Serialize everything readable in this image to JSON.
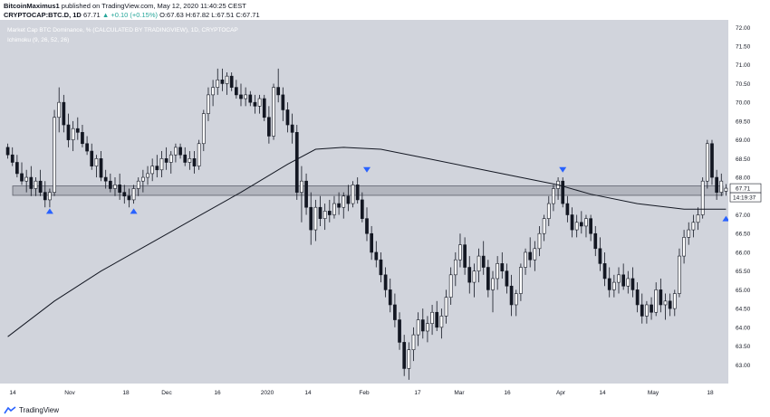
{
  "header": {
    "author": "BitcoinMaximus1",
    "published": "published on TradingView.com, May 12, 2020 11:40:25 CEST",
    "symbol": "CRYPTOCAP:BTC.D, 1D",
    "last": "67.71",
    "change": "▲ +0.10 (+0.15%)",
    "ohlc": "O:67.63 H:67.82 L:67.51 C:67.71"
  },
  "overlay": {
    "title": "Market Cap BTC Dominance, % (CALCULATED BY TRADINGVIEW), 1D, CRYPTOCAP",
    "indicator": "Ichimoku (9, 26, 52, 26)"
  },
  "price_label": "67.71",
  "countdown_label": "14:19:37",
  "footer": {
    "brand": "TradingView"
  },
  "colors": {
    "background": "#d1d4dc",
    "candle_outline": "#131722",
    "candle_fill": "#ffffff",
    "moving_average": "#131722",
    "zone_fill": "#b2b5be",
    "marker": "#2962ff"
  },
  "chart_data": {
    "type": "candlestick",
    "y_axis_ticks": [
      "72.00",
      "71.50",
      "71.00",
      "70.50",
      "70.00",
      "69.50",
      "69.00",
      "68.50",
      "68.00",
      "67.50",
      "67.00",
      "66.50",
      "66.00",
      "65.50",
      "65.00",
      "64.50",
      "64.00",
      "63.50",
      "63.00"
    ],
    "y_range": [
      62.5,
      72.2
    ],
    "x_axis_labels": [
      "14",
      "Nov",
      "18",
      "Dec",
      "16",
      "2020",
      "14",
      "Feb",
      "17",
      "Mar",
      "16",
      "Apr",
      "14",
      "May",
      "18"
    ],
    "support_zone": [
      67.52,
      67.77
    ],
    "last_price": 67.71,
    "candles": [
      {
        "t": 0,
        "o": 68.8,
        "h": 68.9,
        "l": 68.5,
        "c": 68.6
      },
      {
        "t": 1,
        "o": 68.6,
        "h": 68.8,
        "l": 68.3,
        "c": 68.4
      },
      {
        "t": 2,
        "o": 68.4,
        "h": 68.6,
        "l": 68.0,
        "c": 68.1
      },
      {
        "t": 3,
        "o": 68.1,
        "h": 68.4,
        "l": 67.8,
        "c": 67.9
      },
      {
        "t": 4,
        "o": 67.9,
        "h": 68.2,
        "l": 67.6,
        "c": 68.0
      },
      {
        "t": 5,
        "o": 68.0,
        "h": 68.3,
        "l": 67.5,
        "c": 67.7
      },
      {
        "t": 6,
        "o": 67.7,
        "h": 68.0,
        "l": 67.5,
        "c": 67.9
      },
      {
        "t": 7,
        "o": 67.9,
        "h": 68.2,
        "l": 67.5,
        "c": 67.6
      },
      {
        "t": 8,
        "o": 67.6,
        "h": 67.9,
        "l": 67.2,
        "c": 67.4
      },
      {
        "t": 9,
        "o": 67.4,
        "h": 67.7,
        "l": 67.2,
        "c": 67.6
      },
      {
        "t": 10,
        "o": 67.6,
        "h": 69.8,
        "l": 67.5,
        "c": 69.6
      },
      {
        "t": 11,
        "o": 69.6,
        "h": 70.4,
        "l": 69.2,
        "c": 70.0
      },
      {
        "t": 12,
        "o": 70.0,
        "h": 70.2,
        "l": 69.2,
        "c": 69.4
      },
      {
        "t": 13,
        "o": 69.4,
        "h": 69.7,
        "l": 68.8,
        "c": 69.0
      },
      {
        "t": 14,
        "o": 69.0,
        "h": 69.5,
        "l": 68.7,
        "c": 69.3
      },
      {
        "t": 15,
        "o": 69.3,
        "h": 69.6,
        "l": 69.0,
        "c": 69.2
      },
      {
        "t": 16,
        "o": 69.2,
        "h": 69.4,
        "l": 68.8,
        "c": 68.9
      },
      {
        "t": 17,
        "o": 68.9,
        "h": 69.1,
        "l": 68.6,
        "c": 68.7
      },
      {
        "t": 18,
        "o": 68.7,
        "h": 68.9,
        "l": 68.2,
        "c": 68.3
      },
      {
        "t": 19,
        "o": 68.3,
        "h": 68.6,
        "l": 68.0,
        "c": 68.5
      },
      {
        "t": 20,
        "o": 68.5,
        "h": 68.7,
        "l": 67.9,
        "c": 68.0
      },
      {
        "t": 21,
        "o": 68.0,
        "h": 68.2,
        "l": 67.7,
        "c": 67.9
      },
      {
        "t": 22,
        "o": 67.9,
        "h": 68.1,
        "l": 67.6,
        "c": 67.7
      },
      {
        "t": 23,
        "o": 67.7,
        "h": 68.0,
        "l": 67.5,
        "c": 67.8
      },
      {
        "t": 24,
        "o": 67.8,
        "h": 68.1,
        "l": 67.4,
        "c": 67.6
      },
      {
        "t": 25,
        "o": 67.6,
        "h": 67.8,
        "l": 67.3,
        "c": 67.5
      },
      {
        "t": 26,
        "o": 67.5,
        "h": 67.7,
        "l": 67.2,
        "c": 67.4
      },
      {
        "t": 27,
        "o": 67.4,
        "h": 67.8,
        "l": 67.3,
        "c": 67.7
      },
      {
        "t": 28,
        "o": 67.7,
        "h": 68.0,
        "l": 67.5,
        "c": 67.9
      },
      {
        "t": 29,
        "o": 67.9,
        "h": 68.2,
        "l": 67.6,
        "c": 68.0
      },
      {
        "t": 30,
        "o": 68.0,
        "h": 68.3,
        "l": 67.8,
        "c": 68.1
      },
      {
        "t": 31,
        "o": 68.1,
        "h": 68.5,
        "l": 67.9,
        "c": 68.3
      },
      {
        "t": 32,
        "o": 68.3,
        "h": 68.6,
        "l": 68.0,
        "c": 68.2
      },
      {
        "t": 33,
        "o": 68.2,
        "h": 68.7,
        "l": 68.0,
        "c": 68.5
      },
      {
        "t": 34,
        "o": 68.5,
        "h": 68.8,
        "l": 68.2,
        "c": 68.4
      },
      {
        "t": 35,
        "o": 68.4,
        "h": 68.7,
        "l": 68.1,
        "c": 68.6
      },
      {
        "t": 36,
        "o": 68.6,
        "h": 68.9,
        "l": 68.4,
        "c": 68.8
      },
      {
        "t": 37,
        "o": 68.8,
        "h": 68.9,
        "l": 68.5,
        "c": 68.6
      },
      {
        "t": 38,
        "o": 68.6,
        "h": 68.8,
        "l": 68.3,
        "c": 68.4
      },
      {
        "t": 39,
        "o": 68.4,
        "h": 68.7,
        "l": 68.2,
        "c": 68.5
      },
      {
        "t": 40,
        "o": 68.5,
        "h": 68.7,
        "l": 68.1,
        "c": 68.3
      },
      {
        "t": 41,
        "o": 68.3,
        "h": 69.0,
        "l": 68.2,
        "c": 68.9
      },
      {
        "t": 42,
        "o": 68.9,
        "h": 69.8,
        "l": 68.7,
        "c": 69.7
      },
      {
        "t": 43,
        "o": 69.7,
        "h": 70.4,
        "l": 69.5,
        "c": 70.2
      },
      {
        "t": 44,
        "o": 70.2,
        "h": 70.6,
        "l": 69.9,
        "c": 70.4
      },
      {
        "t": 45,
        "o": 70.4,
        "h": 70.9,
        "l": 70.2,
        "c": 70.6
      },
      {
        "t": 46,
        "o": 70.6,
        "h": 70.9,
        "l": 70.3,
        "c": 70.5
      },
      {
        "t": 47,
        "o": 70.5,
        "h": 70.8,
        "l": 70.2,
        "c": 70.7
      },
      {
        "t": 48,
        "o": 70.7,
        "h": 70.8,
        "l": 70.3,
        "c": 70.4
      },
      {
        "t": 49,
        "o": 70.4,
        "h": 70.6,
        "l": 70.1,
        "c": 70.2
      },
      {
        "t": 50,
        "o": 70.2,
        "h": 70.5,
        "l": 69.9,
        "c": 70.1
      },
      {
        "t": 51,
        "o": 70.1,
        "h": 70.4,
        "l": 69.9,
        "c": 70.2
      },
      {
        "t": 52,
        "o": 70.2,
        "h": 70.3,
        "l": 69.9,
        "c": 70.0
      },
      {
        "t": 53,
        "o": 70.0,
        "h": 70.2,
        "l": 69.7,
        "c": 69.9
      },
      {
        "t": 54,
        "o": 69.9,
        "h": 70.2,
        "l": 69.7,
        "c": 70.1
      },
      {
        "t": 55,
        "o": 70.1,
        "h": 70.2,
        "l": 69.5,
        "c": 69.6
      },
      {
        "t": 56,
        "o": 69.6,
        "h": 69.9,
        "l": 68.9,
        "c": 69.1
      },
      {
        "t": 57,
        "o": 69.1,
        "h": 70.5,
        "l": 69.0,
        "c": 70.4
      },
      {
        "t": 58,
        "o": 70.4,
        "h": 70.9,
        "l": 70.0,
        "c": 70.2
      },
      {
        "t": 59,
        "o": 70.2,
        "h": 70.4,
        "l": 69.5,
        "c": 69.8
      },
      {
        "t": 60,
        "o": 69.8,
        "h": 70.0,
        "l": 69.2,
        "c": 69.4
      },
      {
        "t": 61,
        "o": 69.4,
        "h": 69.7,
        "l": 68.9,
        "c": 69.2
      },
      {
        "t": 62,
        "o": 69.2,
        "h": 69.4,
        "l": 67.4,
        "c": 67.6
      },
      {
        "t": 63,
        "o": 67.6,
        "h": 68.3,
        "l": 66.8,
        "c": 67.9
      },
      {
        "t": 64,
        "o": 67.9,
        "h": 68.1,
        "l": 67.0,
        "c": 67.2
      },
      {
        "t": 65,
        "o": 67.2,
        "h": 67.6,
        "l": 66.2,
        "c": 66.6
      },
      {
        "t": 66,
        "o": 66.6,
        "h": 67.4,
        "l": 66.3,
        "c": 67.2
      },
      {
        "t": 67,
        "o": 67.2,
        "h": 67.5,
        "l": 66.7,
        "c": 66.9
      },
      {
        "t": 68,
        "o": 66.9,
        "h": 67.3,
        "l": 66.6,
        "c": 67.1
      },
      {
        "t": 69,
        "o": 67.1,
        "h": 67.4,
        "l": 66.8,
        "c": 67.0
      },
      {
        "t": 70,
        "o": 67.0,
        "h": 67.5,
        "l": 66.9,
        "c": 67.3
      },
      {
        "t": 71,
        "o": 67.3,
        "h": 67.6,
        "l": 67.0,
        "c": 67.2
      },
      {
        "t": 72,
        "o": 67.2,
        "h": 67.6,
        "l": 66.9,
        "c": 67.5
      },
      {
        "t": 73,
        "o": 67.5,
        "h": 67.8,
        "l": 67.1,
        "c": 67.3
      },
      {
        "t": 74,
        "o": 67.3,
        "h": 67.9,
        "l": 67.2,
        "c": 67.8
      },
      {
        "t": 75,
        "o": 67.8,
        "h": 68.0,
        "l": 67.3,
        "c": 67.4
      },
      {
        "t": 76,
        "o": 67.4,
        "h": 67.6,
        "l": 66.8,
        "c": 66.9
      },
      {
        "t": 77,
        "o": 66.9,
        "h": 67.2,
        "l": 66.3,
        "c": 66.5
      },
      {
        "t": 78,
        "o": 66.5,
        "h": 66.7,
        "l": 65.8,
        "c": 66.0
      },
      {
        "t": 79,
        "o": 66.0,
        "h": 66.3,
        "l": 65.6,
        "c": 65.8
      },
      {
        "t": 80,
        "o": 65.8,
        "h": 66.0,
        "l": 65.2,
        "c": 65.4
      },
      {
        "t": 81,
        "o": 65.4,
        "h": 65.6,
        "l": 64.8,
        "c": 65.0
      },
      {
        "t": 82,
        "o": 65.0,
        "h": 65.3,
        "l": 64.4,
        "c": 64.6
      },
      {
        "t": 83,
        "o": 64.6,
        "h": 64.9,
        "l": 64.0,
        "c": 64.2
      },
      {
        "t": 84,
        "o": 64.2,
        "h": 64.4,
        "l": 63.4,
        "c": 63.6
      },
      {
        "t": 85,
        "o": 63.6,
        "h": 63.8,
        "l": 62.7,
        "c": 62.9
      },
      {
        "t": 86,
        "o": 62.9,
        "h": 63.6,
        "l": 62.6,
        "c": 63.4
      },
      {
        "t": 87,
        "o": 63.4,
        "h": 64.0,
        "l": 63.1,
        "c": 63.8
      },
      {
        "t": 88,
        "o": 63.8,
        "h": 64.4,
        "l": 63.5,
        "c": 64.2
      },
      {
        "t": 89,
        "o": 64.2,
        "h": 64.5,
        "l": 63.7,
        "c": 63.9
      },
      {
        "t": 90,
        "o": 63.9,
        "h": 64.3,
        "l": 63.6,
        "c": 64.1
      },
      {
        "t": 91,
        "o": 64.1,
        "h": 64.6,
        "l": 63.8,
        "c": 64.4
      },
      {
        "t": 92,
        "o": 64.4,
        "h": 64.7,
        "l": 63.9,
        "c": 64.0
      },
      {
        "t": 93,
        "o": 64.0,
        "h": 64.5,
        "l": 63.7,
        "c": 64.3
      },
      {
        "t": 94,
        "o": 64.3,
        "h": 65.0,
        "l": 64.1,
        "c": 64.8
      },
      {
        "t": 95,
        "o": 64.8,
        "h": 65.6,
        "l": 64.6,
        "c": 65.4
      },
      {
        "t": 96,
        "o": 65.4,
        "h": 66.0,
        "l": 65.1,
        "c": 65.8
      },
      {
        "t": 97,
        "o": 65.8,
        "h": 66.5,
        "l": 65.6,
        "c": 66.2
      },
      {
        "t": 98,
        "o": 66.2,
        "h": 66.4,
        "l": 65.4,
        "c": 65.6
      },
      {
        "t": 99,
        "o": 65.6,
        "h": 65.9,
        "l": 64.9,
        "c": 65.2
      },
      {
        "t": 100,
        "o": 65.2,
        "h": 65.7,
        "l": 64.8,
        "c": 65.5
      },
      {
        "t": 101,
        "o": 65.5,
        "h": 66.1,
        "l": 65.2,
        "c": 65.9
      },
      {
        "t": 102,
        "o": 65.9,
        "h": 66.3,
        "l": 65.4,
        "c": 65.6
      },
      {
        "t": 103,
        "o": 65.6,
        "h": 65.8,
        "l": 64.8,
        "c": 65.0
      },
      {
        "t": 104,
        "o": 65.0,
        "h": 65.5,
        "l": 64.4,
        "c": 65.3
      },
      {
        "t": 105,
        "o": 65.3,
        "h": 65.9,
        "l": 65.0,
        "c": 65.7
      },
      {
        "t": 106,
        "o": 65.7,
        "h": 66.0,
        "l": 65.3,
        "c": 65.5
      },
      {
        "t": 107,
        "o": 65.5,
        "h": 65.7,
        "l": 64.9,
        "c": 65.1
      },
      {
        "t": 108,
        "o": 65.1,
        "h": 65.4,
        "l": 64.3,
        "c": 64.6
      },
      {
        "t": 109,
        "o": 64.6,
        "h": 65.0,
        "l": 64.3,
        "c": 64.9
      },
      {
        "t": 110,
        "o": 64.9,
        "h": 65.7,
        "l": 64.7,
        "c": 65.6
      },
      {
        "t": 111,
        "o": 65.6,
        "h": 66.1,
        "l": 65.4,
        "c": 66.0
      },
      {
        "t": 112,
        "o": 66.0,
        "h": 66.4,
        "l": 65.6,
        "c": 65.8
      },
      {
        "t": 113,
        "o": 65.8,
        "h": 66.3,
        "l": 65.5,
        "c": 66.1
      },
      {
        "t": 114,
        "o": 66.1,
        "h": 66.7,
        "l": 65.9,
        "c": 66.5
      },
      {
        "t": 115,
        "o": 66.5,
        "h": 67.0,
        "l": 66.3,
        "c": 66.9
      },
      {
        "t": 116,
        "o": 66.9,
        "h": 67.5,
        "l": 66.7,
        "c": 67.3
      },
      {
        "t": 117,
        "o": 67.3,
        "h": 67.8,
        "l": 67.1,
        "c": 67.7
      },
      {
        "t": 118,
        "o": 67.7,
        "h": 68.0,
        "l": 67.4,
        "c": 67.9
      },
      {
        "t": 119,
        "o": 67.9,
        "h": 68.0,
        "l": 67.2,
        "c": 67.3
      },
      {
        "t": 120,
        "o": 67.3,
        "h": 67.5,
        "l": 66.8,
        "c": 67.0
      },
      {
        "t": 121,
        "o": 67.0,
        "h": 67.2,
        "l": 66.4,
        "c": 66.6
      },
      {
        "t": 122,
        "o": 66.6,
        "h": 67.0,
        "l": 66.4,
        "c": 66.8
      },
      {
        "t": 123,
        "o": 66.8,
        "h": 67.1,
        "l": 66.5,
        "c": 66.7
      },
      {
        "t": 124,
        "o": 66.7,
        "h": 67.0,
        "l": 66.4,
        "c": 66.9
      },
      {
        "t": 125,
        "o": 66.9,
        "h": 67.0,
        "l": 66.3,
        "c": 66.5
      },
      {
        "t": 126,
        "o": 66.5,
        "h": 66.7,
        "l": 65.9,
        "c": 66.1
      },
      {
        "t": 127,
        "o": 66.1,
        "h": 66.4,
        "l": 65.5,
        "c": 65.7
      },
      {
        "t": 128,
        "o": 65.7,
        "h": 66.0,
        "l": 65.1,
        "c": 65.3
      },
      {
        "t": 129,
        "o": 65.3,
        "h": 65.6,
        "l": 64.8,
        "c": 65.0
      },
      {
        "t": 130,
        "o": 65.0,
        "h": 65.4,
        "l": 64.8,
        "c": 65.2
      },
      {
        "t": 131,
        "o": 65.2,
        "h": 65.6,
        "l": 64.9,
        "c": 65.4
      },
      {
        "t": 132,
        "o": 65.4,
        "h": 65.7,
        "l": 65.0,
        "c": 65.1
      },
      {
        "t": 133,
        "o": 65.1,
        "h": 65.5,
        "l": 64.9,
        "c": 65.3
      },
      {
        "t": 134,
        "o": 65.3,
        "h": 65.6,
        "l": 64.8,
        "c": 65.0
      },
      {
        "t": 135,
        "o": 65.0,
        "h": 65.2,
        "l": 64.4,
        "c": 64.6
      },
      {
        "t": 136,
        "o": 64.6,
        "h": 64.9,
        "l": 64.1,
        "c": 64.3
      },
      {
        "t": 137,
        "o": 64.3,
        "h": 64.7,
        "l": 64.1,
        "c": 64.6
      },
      {
        "t": 138,
        "o": 64.6,
        "h": 64.8,
        "l": 64.2,
        "c": 64.4
      },
      {
        "t": 139,
        "o": 64.4,
        "h": 65.2,
        "l": 64.3,
        "c": 65.0
      },
      {
        "t": 140,
        "o": 65.0,
        "h": 65.3,
        "l": 64.4,
        "c": 64.6
      },
      {
        "t": 141,
        "o": 64.6,
        "h": 64.9,
        "l": 64.2,
        "c": 64.7
      },
      {
        "t": 142,
        "o": 64.7,
        "h": 64.9,
        "l": 64.3,
        "c": 64.5
      },
      {
        "t": 143,
        "o": 64.5,
        "h": 65.0,
        "l": 64.3,
        "c": 64.9
      },
      {
        "t": 144,
        "o": 64.9,
        "h": 66.1,
        "l": 64.8,
        "c": 65.9
      },
      {
        "t": 145,
        "o": 65.9,
        "h": 66.6,
        "l": 65.7,
        "c": 66.4
      },
      {
        "t": 146,
        "o": 66.4,
        "h": 66.8,
        "l": 66.2,
        "c": 66.6
      },
      {
        "t": 147,
        "o": 66.6,
        "h": 67.0,
        "l": 66.4,
        "c": 66.8
      },
      {
        "t": 148,
        "o": 66.8,
        "h": 67.2,
        "l": 66.6,
        "c": 67.0
      },
      {
        "t": 149,
        "o": 67.0,
        "h": 68.0,
        "l": 66.9,
        "c": 67.9
      },
      {
        "t": 150,
        "o": 67.9,
        "h": 69.0,
        "l": 67.7,
        "c": 68.9
      },
      {
        "t": 151,
        "o": 68.9,
        "h": 69.0,
        "l": 67.8,
        "c": 68.0
      },
      {
        "t": 152,
        "o": 68.0,
        "h": 68.2,
        "l": 67.4,
        "c": 67.6
      },
      {
        "t": 153,
        "o": 67.6,
        "h": 68.1,
        "l": 67.5,
        "c": 67.9
      },
      {
        "t": 154,
        "o": 67.63,
        "h": 67.82,
        "l": 67.51,
        "c": 67.71
      }
    ],
    "moving_average": [
      {
        "t": 0,
        "v": 63.75
      },
      {
        "t": 10,
        "v": 64.7
      },
      {
        "t": 20,
        "v": 65.5
      },
      {
        "t": 30,
        "v": 66.2
      },
      {
        "t": 40,
        "v": 66.9
      },
      {
        "t": 50,
        "v": 67.6
      },
      {
        "t": 60,
        "v": 68.35
      },
      {
        "t": 66,
        "v": 68.75
      },
      {
        "t": 72,
        "v": 68.8
      },
      {
        "t": 80,
        "v": 68.75
      },
      {
        "t": 90,
        "v": 68.5
      },
      {
        "t": 100,
        "v": 68.25
      },
      {
        "t": 110,
        "v": 68.0
      },
      {
        "t": 118,
        "v": 67.8
      },
      {
        "t": 125,
        "v": 67.55
      },
      {
        "t": 135,
        "v": 67.3
      },
      {
        "t": 145,
        "v": 67.15
      },
      {
        "t": 154,
        "v": 67.15
      }
    ],
    "markers": [
      {
        "t": 9,
        "dir": "up",
        "v": 67.1
      },
      {
        "t": 27,
        "dir": "up",
        "v": 67.1
      },
      {
        "t": 77,
        "dir": "down",
        "v": 68.2
      },
      {
        "t": 119,
        "dir": "down",
        "v": 68.2
      },
      {
        "t": 154,
        "dir": "up",
        "v": 66.9
      }
    ]
  }
}
